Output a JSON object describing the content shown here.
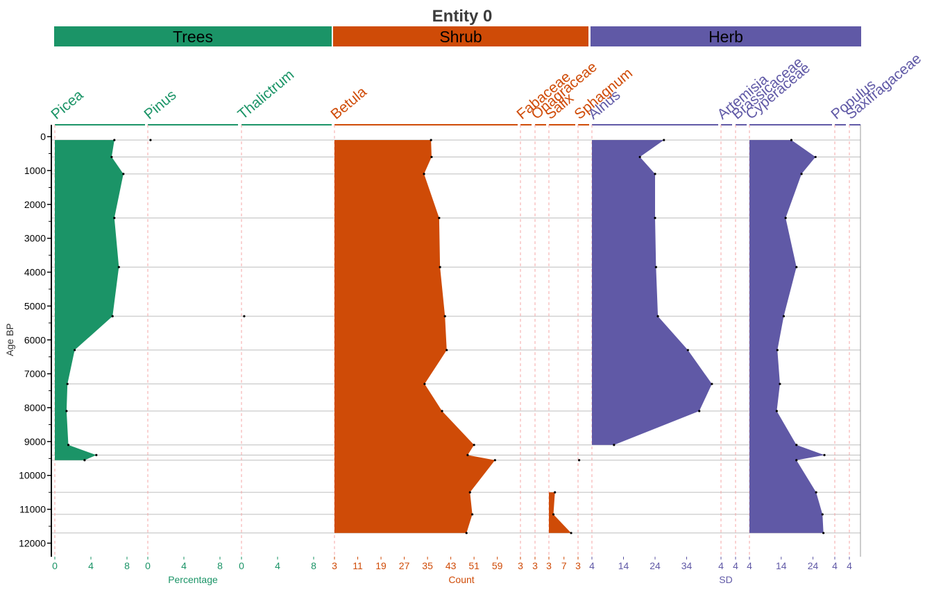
{
  "chart_data": {
    "type": "area",
    "title": "Entity 0",
    "ylabel": "Age BP",
    "ylim": [
      12400,
      -350
    ],
    "y_ticks": [
      0,
      1000,
      2000,
      3000,
      4000,
      5000,
      6000,
      7000,
      8000,
      9000,
      10000,
      11000,
      12000
    ],
    "groups": [
      {
        "name": "Trees",
        "color": "#1b9467",
        "xlabel": "Percentage"
      },
      {
        "name": "Shrub",
        "color": "#cf4b07",
        "xlabel": "Count"
      },
      {
        "name": "Herb",
        "color": "#6059a6",
        "xlabel": "SD"
      }
    ],
    "sample_ages": [
      100,
      600,
      1100,
      2400,
      3850,
      5300,
      6300,
      7300,
      8100,
      9100,
      9400,
      9550,
      10500,
      11150,
      11700
    ],
    "taxa": [
      {
        "name": "Picea",
        "group": 0,
        "ticks": [
          0,
          4,
          8
        ],
        "ticklabels": [
          "0",
          "4",
          "8"
        ],
        "ages": [
          100,
          600,
          1100,
          2400,
          3850,
          5300,
          6300,
          7300,
          8100,
          9100,
          9400,
          9550
        ],
        "values": [
          6.6,
          6.3,
          7.6,
          6.6,
          7.1,
          6.4,
          2.2,
          1.4,
          1.3,
          1.5,
          4.6,
          3.3
        ],
        "fill": true
      },
      {
        "name": "Pinus",
        "group": 0,
        "ticks": [
          0,
          4,
          8
        ],
        "ticklabels": [
          "0",
          "4",
          "8"
        ],
        "ages": [
          100
        ],
        "values": [
          0.3
        ],
        "fill": false
      },
      {
        "name": "Thalictrum",
        "group": 0,
        "ticks": [
          0,
          4,
          8
        ],
        "ticklabels": [
          "0",
          "4",
          "8"
        ],
        "ages": [
          5300
        ],
        "values": [
          0.3
        ],
        "fill": false
      },
      {
        "name": "Betula",
        "group": 1,
        "ticks": [
          3,
          11,
          19,
          27,
          35,
          43,
          51,
          59
        ],
        "ticklabels": [
          "3",
          "11",
          "19",
          "27",
          "35",
          "43",
          "51",
          "59"
        ],
        "ages": [
          100,
          600,
          1100,
          2400,
          3850,
          5300,
          6300,
          7300,
          8100,
          9100,
          9400,
          9550,
          10500,
          11150,
          11700
        ],
        "values": [
          36.2,
          36.4,
          33.8,
          39.0,
          39.3,
          41.0,
          41.6,
          34.0,
          40.0,
          51.0,
          48.8,
          58.2,
          49.6,
          50.4,
          48.4
        ],
        "fill": true
      },
      {
        "name": "Fabaceae",
        "group": 1,
        "ticks": [
          3
        ],
        "ticklabels": [
          "3"
        ],
        "ages": [],
        "values": [],
        "fill": false
      },
      {
        "name": "Onagraceae",
        "group": 1,
        "ticks": [
          3
        ],
        "ticklabels": [
          "3"
        ],
        "ages": [],
        "values": [],
        "fill": false
      },
      {
        "name": "Salix",
        "group": 1,
        "ticks": [
          3,
          7
        ],
        "ticklabels": [
          "3",
          "7"
        ],
        "ages": [
          10500,
          11150,
          11700
        ],
        "values": [
          4.6,
          4.2,
          8.9
        ],
        "fill": true
      },
      {
        "name": "Sphagnum",
        "group": 1,
        "ticks": [
          3
        ],
        "ticklabels": [
          "3"
        ],
        "ages": [
          9550
        ],
        "values": [
          3.1
        ],
        "fill": false
      },
      {
        "name": "Alnus",
        "group": 2,
        "ticks": [
          4,
          14,
          24,
          34
        ],
        "ticklabels": [
          "4",
          "14",
          "24",
          "34"
        ],
        "ages": [
          100,
          600,
          1100,
          2400,
          3850,
          5300,
          6300,
          7300,
          8100,
          9100
        ],
        "values": [
          26.8,
          19.2,
          24.0,
          24.0,
          24.3,
          24.9,
          34.4,
          42.0,
          38.0,
          11.0
        ],
        "fill": true
      },
      {
        "name": "Artemisia",
        "group": 2,
        "ticks": [
          4
        ],
        "ticklabels": [
          "4"
        ],
        "ages": [],
        "values": [],
        "fill": false
      },
      {
        "name": "Brassicaceae",
        "group": 2,
        "ticks": [
          4
        ],
        "ticklabels": [
          "4"
        ],
        "ages": [],
        "values": [],
        "fill": false
      },
      {
        "name": "Cyperaceae",
        "group": 2,
        "ticks": [
          4,
          14,
          24
        ],
        "ticklabels": [
          "4",
          "14",
          "24"
        ],
        "ages": [
          100,
          600,
          1100,
          2400,
          3850,
          5300,
          6300,
          7300,
          8100,
          9100,
          9400,
          9550,
          10500,
          11150,
          11700
        ],
        "values": [
          17.2,
          24.8,
          20.4,
          15.4,
          18.8,
          14.8,
          12.8,
          13.6,
          12.6,
          18.8,
          27.6,
          18.8,
          25.0,
          27.0,
          27.3
        ],
        "fill": true
      },
      {
        "name": "Populus",
        "group": 2,
        "ticks": [
          4
        ],
        "ticklabels": [
          "4"
        ],
        "ages": [],
        "values": [],
        "fill": false
      },
      {
        "name": "Saxifragaceae",
        "group": 2,
        "ticks": [
          4
        ],
        "ticklabels": [
          "4"
        ],
        "ages": [],
        "values": [],
        "fill": false
      }
    ]
  }
}
